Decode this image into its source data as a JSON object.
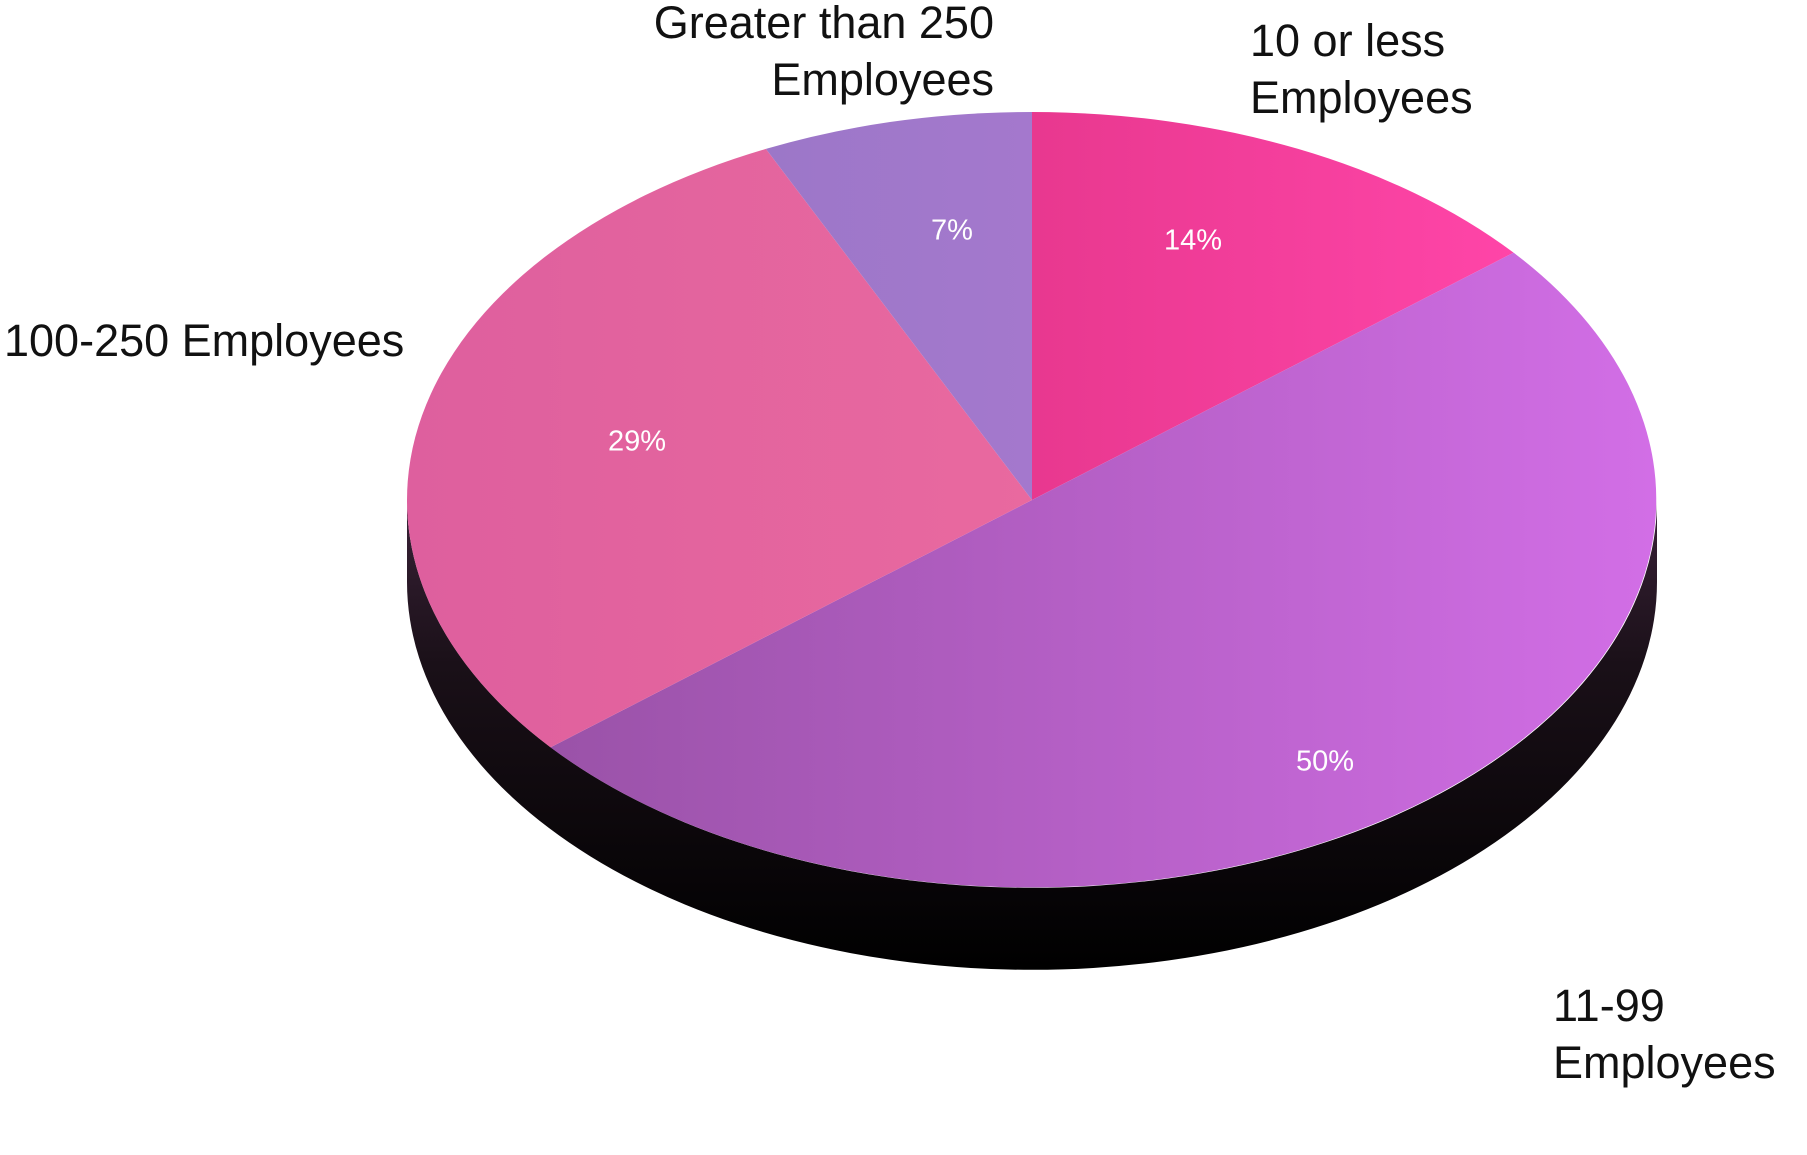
{
  "chart_data": {
    "type": "pie",
    "style": "3d-tilted",
    "start": "12 o'clock",
    "direction": "clockwise",
    "slices": [
      {
        "label_lines": [
          "10 or less",
          "Employees"
        ],
        "value": 14,
        "value_label": "14%",
        "color": "#e8388f",
        "color_light": "#ff45a8"
      },
      {
        "label_lines": [
          "11-99",
          "Employees"
        ],
        "value": 50,
        "value_label": "50%",
        "color": "#9a52a8",
        "color_light": "#d26ee6"
      },
      {
        "label_lines": [
          "100-250 Employees"
        ],
        "value": 29,
        "value_label": "29%",
        "color": "#de5f9e",
        "color_light": "#e9699f"
      },
      {
        "label_lines": [
          "Greater than 250",
          "Employees"
        ],
        "value": 7,
        "value_label": "7%",
        "color": "#9c77c8",
        "color_light": "#a478cd"
      }
    ],
    "side_color": "#1a1018"
  }
}
